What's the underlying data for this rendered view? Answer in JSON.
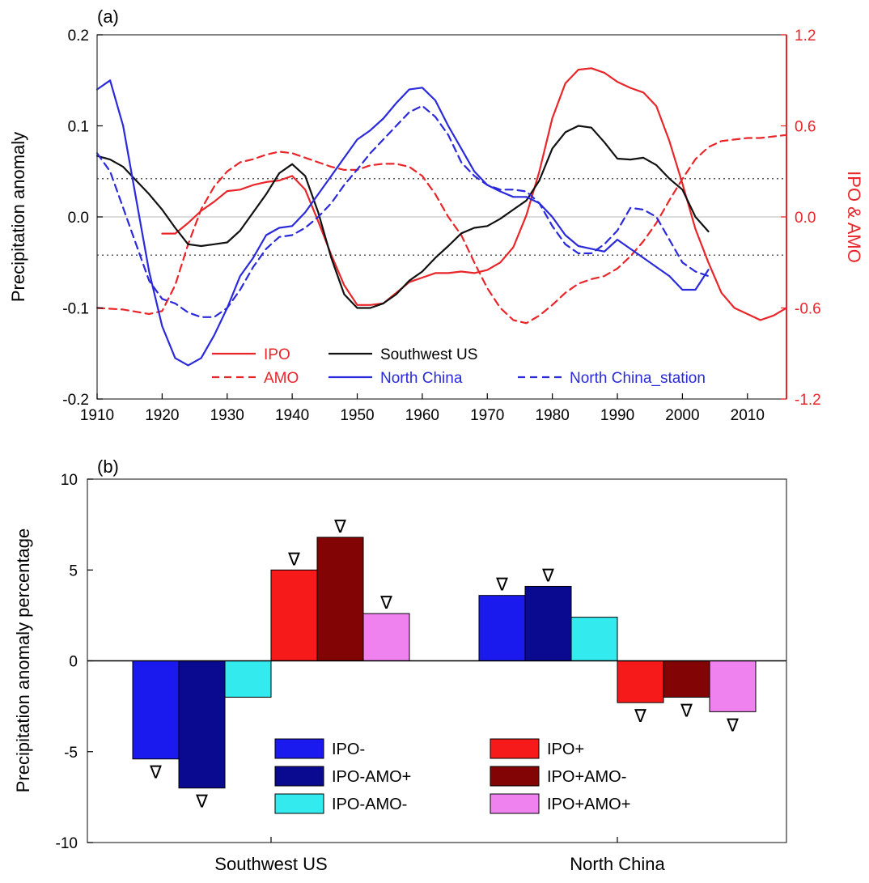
{
  "panel_a": {
    "label": "(a)",
    "ylabel_left": "Precipitation anomaly",
    "ylabel_right": "IPO & AMO",
    "colors": {
      "left_axis": "#000000",
      "right_axis": "#e8262a",
      "zero_line": "#c8c8c8",
      "threshold": "#555555"
    }
  },
  "panel_b": {
    "label": "(b)",
    "ylabel": "Precipitation anomaly percentage",
    "marker_symbol": "∇"
  },
  "chart_data": [
    {
      "type": "line",
      "panel": "(a)",
      "xlabel": "",
      "ylabel": "Precipitation anomaly",
      "y2label": "IPO & AMO",
      "xlim": [
        1910,
        2016
      ],
      "ylim": [
        -0.2,
        0.2
      ],
      "y2lim": [
        -1.2,
        1.2
      ],
      "x_ticks": [
        1910,
        1920,
        1930,
        1940,
        1950,
        1960,
        1970,
        1980,
        1990,
        2000,
        2010
      ],
      "y_ticks": [
        -0.2,
        -0.1,
        0.0,
        0.1,
        0.2
      ],
      "y_tick_labels": [
        "-0.2",
        "-0.1",
        "0.0",
        "0.1",
        "0.2"
      ],
      "y2_ticks": [
        -1.2,
        -0.6,
        0.0,
        0.6,
        1.2
      ],
      "y2_tick_labels": [
        "-1.2",
        "-0.6",
        "0.0",
        "0.6",
        "1.2"
      ],
      "zero_line": 0.0,
      "threshold_lines": [
        0.042,
        -0.042
      ],
      "legend_position": "bottom",
      "series": [
        {
          "name": "IPO",
          "axis": "right",
          "color": "#e8262a",
          "dash": false,
          "x": [
            1920,
            1922,
            1924,
            1926,
            1928,
            1930,
            1932,
            1934,
            1936,
            1938,
            1940,
            1942,
            1944,
            1946,
            1948,
            1950,
            1952,
            1954,
            1956,
            1958,
            1960,
            1962,
            1964,
            1966,
            1968,
            1970,
            1972,
            1974,
            1976,
            1978,
            1980,
            1982,
            1984,
            1986,
            1988,
            1990,
            1992,
            1994,
            1996,
            1998,
            2000,
            2002,
            2004,
            2006,
            2008,
            2010,
            2012,
            2014,
            2016
          ],
          "y": [
            -0.11,
            -0.11,
            -0.04,
            0.04,
            0.1,
            0.17,
            0.18,
            0.21,
            0.23,
            0.24,
            0.27,
            0.18,
            -0.03,
            -0.25,
            -0.45,
            -0.58,
            -0.58,
            -0.57,
            -0.5,
            -0.43,
            -0.4,
            -0.37,
            -0.37,
            -0.36,
            -0.37,
            -0.35,
            -0.3,
            -0.2,
            0.01,
            0.3,
            0.65,
            0.88,
            0.97,
            0.98,
            0.95,
            0.89,
            0.85,
            0.82,
            0.73,
            0.5,
            0.22,
            -0.08,
            -0.3,
            -0.5,
            -0.6,
            -0.64,
            -0.68,
            -0.65,
            -0.6
          ]
        },
        {
          "name": "AMO",
          "axis": "right",
          "color": "#e8262a",
          "dash": true,
          "x": [
            1910,
            1914,
            1918,
            1920,
            1922,
            1924,
            1926,
            1928,
            1930,
            1932,
            1934,
            1936,
            1938,
            1940,
            1942,
            1944,
            1946,
            1948,
            1950,
            1952,
            1954,
            1956,
            1958,
            1960,
            1962,
            1964,
            1966,
            1968,
            1970,
            1972,
            1974,
            1976,
            1978,
            1980,
            1982,
            1984,
            1986,
            1988,
            1990,
            1992,
            1994,
            1996,
            1998,
            2000,
            2002,
            2004,
            2006,
            2008,
            2010,
            2012,
            2014,
            2016
          ],
          "y": [
            -0.6,
            -0.61,
            -0.64,
            -0.62,
            -0.45,
            -0.18,
            0.05,
            0.2,
            0.3,
            0.36,
            0.38,
            0.41,
            0.43,
            0.42,
            0.39,
            0.36,
            0.33,
            0.31,
            0.31,
            0.34,
            0.35,
            0.35,
            0.33,
            0.27,
            0.15,
            0.0,
            -0.12,
            -0.3,
            -0.47,
            -0.6,
            -0.68,
            -0.7,
            -0.65,
            -0.58,
            -0.5,
            -0.44,
            -0.41,
            -0.39,
            -0.34,
            -0.26,
            -0.16,
            -0.04,
            0.11,
            0.25,
            0.38,
            0.46,
            0.5,
            0.51,
            0.52,
            0.52,
            0.53,
            0.54
          ]
        },
        {
          "name": "Southwest US",
          "axis": "left",
          "color": "#111111",
          "dash": false,
          "x": [
            1910,
            1912,
            1914,
            1916,
            1918,
            1920,
            1922,
            1924,
            1926,
            1928,
            1930,
            1932,
            1934,
            1936,
            1938,
            1940,
            1942,
            1944,
            1946,
            1948,
            1950,
            1952,
            1954,
            1956,
            1958,
            1960,
            1962,
            1964,
            1966,
            1968,
            1970,
            1972,
            1974,
            1976,
            1978,
            1980,
            1982,
            1984,
            1986,
            1988,
            1990,
            1992,
            1994,
            1996,
            1998,
            2000,
            2002,
            2004
          ],
          "y": [
            0.067,
            0.063,
            0.055,
            0.04,
            0.025,
            0.008,
            -0.012,
            -0.03,
            -0.032,
            -0.03,
            -0.028,
            -0.015,
            0.005,
            0.025,
            0.048,
            0.058,
            0.045,
            0.005,
            -0.045,
            -0.085,
            -0.1,
            -0.1,
            -0.095,
            -0.085,
            -0.07,
            -0.06,
            -0.045,
            -0.032,
            -0.018,
            -0.012,
            -0.01,
            -0.002,
            0.008,
            0.018,
            0.04,
            0.075,
            0.093,
            0.1,
            0.098,
            0.082,
            0.064,
            0.063,
            0.065,
            0.057,
            0.042,
            0.03,
            0.0,
            -0.016
          ]
        },
        {
          "name": "North China",
          "axis": "left",
          "color": "#2a2adb",
          "dash": false,
          "x": [
            1910,
            1912,
            1914,
            1916,
            1918,
            1920,
            1922,
            1924,
            1926,
            1928,
            1930,
            1932,
            1934,
            1936,
            1938,
            1940,
            1942,
            1944,
            1946,
            1948,
            1950,
            1952,
            1954,
            1956,
            1958,
            1960,
            1962,
            1964,
            1966,
            1968,
            1970,
            1972,
            1974,
            1976,
            1978,
            1980,
            1982,
            1984,
            1986,
            1988,
            1990,
            1992,
            1994,
            1996,
            1998,
            2000,
            2002,
            2004
          ],
          "y": [
            0.14,
            0.15,
            0.1,
            0.02,
            -0.06,
            -0.12,
            -0.155,
            -0.163,
            -0.155,
            -0.13,
            -0.1,
            -0.065,
            -0.045,
            -0.02,
            -0.012,
            -0.01,
            0.005,
            0.025,
            0.045,
            0.065,
            0.085,
            0.095,
            0.108,
            0.125,
            0.14,
            0.142,
            0.128,
            0.1,
            0.075,
            0.05,
            0.035,
            0.028,
            0.022,
            0.022,
            0.015,
            0.0,
            -0.02,
            -0.032,
            -0.035,
            -0.038,
            -0.025,
            -0.035,
            -0.045,
            -0.055,
            -0.065,
            -0.08,
            -0.08,
            -0.058
          ]
        },
        {
          "name": "North China_station",
          "axis": "left",
          "color": "#2a2adb",
          "dash": true,
          "x": [
            1910,
            1912,
            1914,
            1916,
            1918,
            1920,
            1922,
            1924,
            1926,
            1928,
            1930,
            1932,
            1934,
            1936,
            1938,
            1940,
            1942,
            1944,
            1946,
            1948,
            1950,
            1952,
            1954,
            1956,
            1958,
            1960,
            1962,
            1964,
            1966,
            1968,
            1970,
            1972,
            1974,
            1976,
            1978,
            1980,
            1982,
            1984,
            1986,
            1988,
            1990,
            1992,
            1994,
            1996,
            1998,
            2000,
            2002,
            2004
          ],
          "y": [
            0.07,
            0.05,
            0.01,
            -0.03,
            -0.07,
            -0.09,
            -0.095,
            -0.105,
            -0.11,
            -0.11,
            -0.1,
            -0.08,
            -0.055,
            -0.035,
            -0.022,
            -0.02,
            -0.012,
            0.0,
            0.015,
            0.035,
            0.052,
            0.07,
            0.085,
            0.1,
            0.115,
            0.122,
            0.11,
            0.09,
            0.06,
            0.045,
            0.035,
            0.03,
            0.03,
            0.028,
            0.015,
            -0.01,
            -0.03,
            -0.04,
            -0.04,
            -0.03,
            -0.015,
            0.01,
            0.008,
            0.0,
            -0.025,
            -0.05,
            -0.06,
            -0.065
          ]
        }
      ]
    },
    {
      "type": "bar",
      "panel": "(b)",
      "xlabel": "",
      "ylabel": "Precipitation anomaly percentage",
      "categories": [
        "Southwest US",
        "North China"
      ],
      "ylim": [
        -10,
        10
      ],
      "y_ticks": [
        -10,
        -5,
        0,
        5,
        10
      ],
      "y_tick_labels": [
        "-10",
        "-5",
        "0",
        "5",
        "10"
      ],
      "legend_position": "bottom",
      "series": [
        {
          "name": "IPO-",
          "color": "#1a1aee",
          "values": [
            -5.4,
            3.6
          ],
          "significant": [
            true,
            true
          ]
        },
        {
          "name": "IPO-AMO+",
          "color": "#0a0a90",
          "values": [
            -7.0,
            4.1
          ],
          "significant": [
            true,
            true
          ]
        },
        {
          "name": "IPO-AMO-",
          "color": "#33eaee",
          "values": [
            -2.0,
            2.4
          ],
          "significant": [
            false,
            false
          ]
        },
        {
          "name": "IPO+",
          "color": "#f61a1a",
          "values": [
            5.0,
            -2.3
          ],
          "significant": [
            true,
            true
          ]
        },
        {
          "name": "IPO+AMO-",
          "color": "#820404",
          "values": [
            6.8,
            -2.0
          ],
          "significant": [
            true,
            true
          ]
        },
        {
          "name": "IPO+AMO+",
          "color": "#f082f0",
          "values": [
            2.6,
            -2.8
          ],
          "significant": [
            true,
            true
          ]
        }
      ]
    }
  ]
}
